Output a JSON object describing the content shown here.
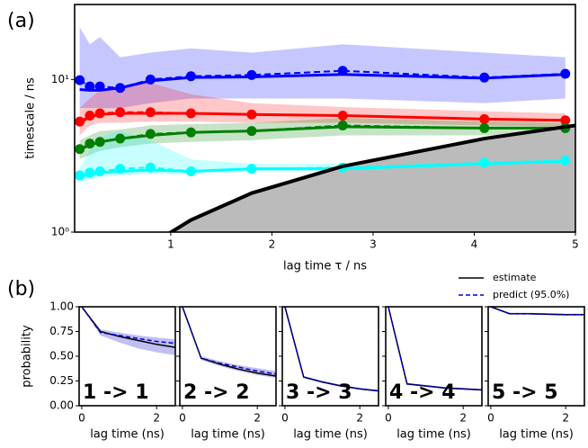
{
  "chart_data": [
    {
      "type": "line",
      "panel_tag": "(a)",
      "xlabel": "lag time τ / ns",
      "ylabel": "timescale / ns",
      "log_y": true,
      "xlim": [
        0.05,
        5
      ],
      "ylim": [
        1,
        31
      ],
      "xticks": [
        1,
        2,
        3,
        4,
        5
      ],
      "yticks": [
        {
          "value": 1,
          "label": "10⁰"
        },
        {
          "value": 10,
          "label": "10¹"
        }
      ],
      "x": [
        0.1,
        0.2,
        0.3,
        0.5,
        0.8,
        1.2,
        1.8,
        2.7,
        4.1,
        4.9
      ],
      "series": [
        {
          "color": "#0000ff",
          "values": [
            8.6,
            8.5,
            8.5,
            8.8,
            9.8,
            10.3,
            10.4,
            10.8,
            10.2,
            10.8
          ],
          "predict": [
            9.9,
            9.0,
            9.0,
            8.8,
            10.0,
            10.5,
            10.7,
            11.4,
            10.3,
            10.9
          ],
          "lower": [
            6.5,
            6.5,
            6.5,
            6.5,
            7,
            7.5,
            7.5,
            7.5,
            7,
            7.5
          ],
          "upper": [
            22,
            17,
            19,
            14,
            15,
            16,
            15,
            17,
            15,
            14
          ]
        },
        {
          "color": "#ff0000",
          "values": [
            5.2,
            5.7,
            5.9,
            6.0,
            6.0,
            6.0,
            5.9,
            5.8,
            5.5,
            5.4
          ],
          "predict": [
            5.3,
            5.8,
            6.0,
            6.1,
            6.1,
            6.0,
            5.9,
            5.8,
            5.5,
            5.4
          ],
          "lower": [
            4.3,
            5,
            5.2,
            5.2,
            5.3,
            5.3,
            5.2,
            5.2,
            5,
            4.9
          ],
          "upper": [
            6.5,
            7.5,
            8.5,
            9,
            9.5,
            8,
            7,
            6.6,
            6.2,
            6
          ]
        },
        {
          "color": "#008000",
          "values": [
            3.5,
            3.7,
            3.9,
            4.1,
            4.3,
            4.5,
            4.6,
            4.9,
            4.8,
            4.8
          ],
          "predict": [
            3.5,
            3.8,
            3.9,
            4.1,
            4.4,
            4.5,
            4.6,
            5.0,
            4.8,
            4.8
          ],
          "lower": [
            3,
            3.2,
            3.4,
            3.6,
            3.8,
            3.9,
            4,
            4.3,
            4.3,
            4.3
          ],
          "upper": [
            4,
            4.3,
            4.6,
            4.7,
            5,
            5.1,
            5.2,
            5.6,
            5.3,
            5.2
          ]
        },
        {
          "color": "#00ffff",
          "values": [
            2.3,
            2.4,
            2.45,
            2.5,
            2.55,
            2.5,
            2.6,
            2.6,
            2.8,
            2.9
          ],
          "predict": [
            2.35,
            2.45,
            2.5,
            2.6,
            2.65,
            2.5,
            2.6,
            2.65,
            2.85,
            2.95
          ],
          "lower": [
            2.1,
            2.2,
            2.3,
            2.35,
            2.4,
            2.4,
            2.5,
            2.5,
            2.6,
            2.7
          ],
          "upper": [
            2.6,
            3.5,
            4.2,
            4.6,
            4,
            3,
            2.8,
            2.8,
            3,
            3.1
          ]
        }
      ],
      "lag": {
        "color": "#000000",
        "x": [
          0.95,
          1.2,
          1.8,
          2.7,
          4.1,
          5
        ],
        "values": [
          0.95,
          1.2,
          1.8,
          2.7,
          4.1,
          5
        ]
      }
    },
    {
      "type": "line",
      "panel_tag": "(b)",
      "xlabel": "lag time (ns)",
      "ylabel": "probability",
      "xlim": [
        -0.07,
        2.5
      ],
      "ylim": [
        0,
        1
      ],
      "xticks": [
        0,
        2
      ],
      "yticks": [
        {
          "value": 0,
          "label": "0.00"
        },
        {
          "value": 0.25,
          "label": "0.25"
        },
        {
          "value": 0.5,
          "label": "0.50"
        },
        {
          "value": 0.75,
          "label": "0.75"
        },
        {
          "value": 1,
          "label": "1.00"
        }
      ],
      "x": [
        0,
        0.5,
        1,
        1.5,
        2,
        2.5
      ],
      "series": [
        {
          "name": "estimate",
          "color": "#000000"
        },
        {
          "name": "predict (95.0%)",
          "color": "#0000cc"
        }
      ],
      "panels": [
        {
          "label": "1 -> 1",
          "estimate": [
            1,
            0.75,
            0.7,
            0.66,
            0.62,
            0.59
          ],
          "predict": [
            1,
            0.74,
            0.71,
            0.68,
            0.65,
            0.63
          ],
          "lower": [
            1,
            0.71,
            0.64,
            0.58,
            0.54,
            0.51
          ],
          "upper": [
            1,
            0.77,
            0.74,
            0.71,
            0.69,
            0.67
          ]
        },
        {
          "label": "2 -> 2",
          "estimate": [
            1,
            0.48,
            0.42,
            0.37,
            0.33,
            0.3
          ],
          "predict": [
            1,
            0.48,
            0.43,
            0.39,
            0.35,
            0.32
          ],
          "lower": [
            1,
            0.46,
            0.4,
            0.35,
            0.31,
            0.28
          ],
          "upper": [
            1,
            0.5,
            0.45,
            0.41,
            0.38,
            0.35
          ]
        },
        {
          "label": "3 -> 3",
          "estimate": [
            1,
            0.29,
            0.24,
            0.2,
            0.17,
            0.15
          ],
          "predict": [
            1,
            0.29,
            0.24,
            0.2,
            0.17,
            0.15
          ],
          "lower": [
            1,
            0.28,
            0.23,
            0.19,
            0.16,
            0.14
          ],
          "upper": [
            1,
            0.3,
            0.25,
            0.21,
            0.18,
            0.16
          ]
        },
        {
          "label": "4 -> 4",
          "estimate": [
            1,
            0.22,
            0.2,
            0.18,
            0.17,
            0.16
          ],
          "predict": [
            1,
            0.22,
            0.2,
            0.18,
            0.17,
            0.16
          ],
          "lower": [
            1,
            0.21,
            0.19,
            0.17,
            0.16,
            0.15
          ],
          "upper": [
            1,
            0.23,
            0.21,
            0.19,
            0.18,
            0.17
          ]
        },
        {
          "label": "5 -> 5",
          "estimate": [
            1,
            0.93,
            0.93,
            0.925,
            0.92,
            0.92
          ],
          "predict": [
            1,
            0.93,
            0.93,
            0.925,
            0.92,
            0.92
          ],
          "lower": [
            1,
            0.92,
            0.92,
            0.915,
            0.91,
            0.91
          ],
          "upper": [
            1,
            0.94,
            0.94,
            0.935,
            0.93,
            0.93
          ]
        }
      ]
    }
  ]
}
